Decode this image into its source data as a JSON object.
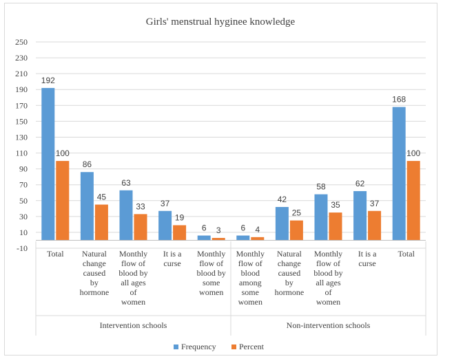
{
  "chart_data": {
    "type": "bar",
    "title": "Girls' menstrual hyginee knowledge",
    "xlabel": "",
    "ylabel": "",
    "ylim": [
      -10,
      250
    ],
    "yticks": [
      -10,
      10,
      30,
      50,
      70,
      90,
      110,
      130,
      150,
      170,
      190,
      210,
      230,
      250
    ],
    "grid": true,
    "legend_position": "bottom",
    "categories": [
      [
        "Total"
      ],
      [
        "Natural",
        "change",
        "caused",
        "by",
        "hormone"
      ],
      [
        "Monthly",
        "flow of",
        "blood by",
        "all ages",
        "of",
        "women"
      ],
      [
        "It is a",
        "curse"
      ],
      [
        "Monthly",
        "flow of",
        "blood by",
        "some",
        "women"
      ],
      [
        "Monthly",
        "flow of",
        "blood",
        "among",
        "some",
        "women"
      ],
      [
        "Natural",
        "change",
        "caused",
        "by",
        "hormone"
      ],
      [
        "Monthly",
        "flow of",
        "blood by",
        "all ages",
        "of",
        "women"
      ],
      [
        "It is a",
        "curse"
      ],
      [
        "Total"
      ]
    ],
    "groups": [
      {
        "label": "Intervention schools",
        "span": [
          0,
          4
        ]
      },
      {
        "label": "Non-intervention schools",
        "span": [
          5,
          9
        ]
      }
    ],
    "series": [
      {
        "name": "Frequency",
        "color": "#5b9bd5",
        "values": [
          192,
          86,
          63,
          37,
          6,
          6,
          42,
          58,
          62,
          168
        ]
      },
      {
        "name": "Percent",
        "color": "#ed7d31",
        "values": [
          100,
          45,
          33,
          19,
          3,
          4,
          25,
          35,
          37,
          100
        ]
      }
    ]
  }
}
